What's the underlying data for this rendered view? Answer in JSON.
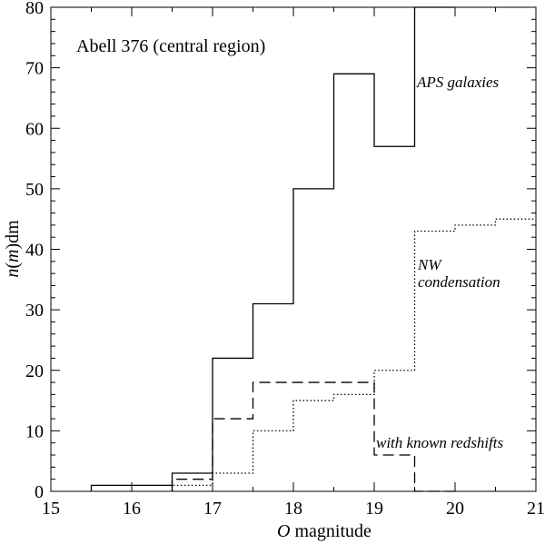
{
  "chart_data": {
    "type": "line",
    "step": true,
    "title": "Abell 376 (central region)",
    "xlabel": {
      "prefix": "O",
      "suffix": " magnitude"
    },
    "ylabel": {
      "n": "n",
      "m": "m",
      "dm": "dm"
    },
    "xlim": [
      15,
      21
    ],
    "ylim": [
      0,
      80
    ],
    "xticks": [
      15,
      16,
      17,
      18,
      19,
      20,
      21
    ],
    "yticks": [
      0,
      10,
      20,
      30,
      40,
      50,
      60,
      70,
      80
    ],
    "grid": false,
    "series": [
      {
        "name": "APS galaxies",
        "style": "solid",
        "x": [
          15.5,
          16.0,
          16.5,
          17.0,
          17.5,
          18.0,
          18.5,
          19.0,
          19.5
        ],
        "values": [
          1,
          1,
          3,
          22,
          31,
          50,
          69,
          57,
          80
        ]
      },
      {
        "name": "NW condensation",
        "style": "dotted",
        "x": [
          16.5,
          17.0,
          17.5,
          18.0,
          18.5,
          19.0,
          19.5,
          20.0,
          20.5
        ],
        "values": [
          1,
          3,
          10,
          15,
          16,
          20,
          43,
          44,
          45
        ]
      },
      {
        "name": "with known redshifts",
        "style": "dashed",
        "x": [
          16.5,
          17.0,
          17.5,
          18.0,
          18.5,
          19.0,
          19.5
        ],
        "values": [
          2,
          12,
          18,
          18,
          18,
          6,
          0
        ]
      }
    ],
    "annotations": {
      "aps": "APS galaxies",
      "nw_line1": "NW",
      "nw_line2": "condensation",
      "redshift": "with known redshifts"
    }
  }
}
